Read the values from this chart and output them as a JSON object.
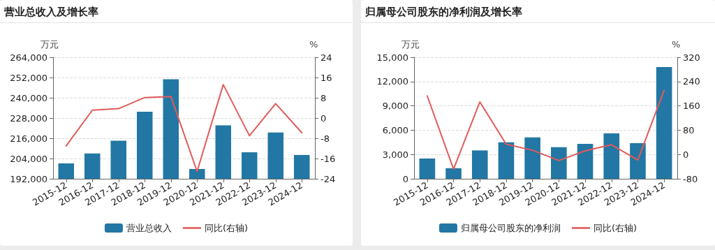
{
  "chart_data": [
    {
      "type": "bar",
      "title": "营业总收入及增长率",
      "ylabel": "万元",
      "y2label": "%",
      "categories": [
        "2015-12",
        "2016-12",
        "2017-12",
        "2018-12",
        "2019-12",
        "2020-12",
        "2021-12",
        "2022-12",
        "2023-12",
        "2024-12"
      ],
      "series": [
        {
          "name": "营业总收入",
          "color": "#2277a4",
          "values": [
            201100,
            207000,
            214600,
            231700,
            251000,
            197800,
            223700,
            207700,
            219400,
            206100
          ]
        },
        {
          "name": "同比(右轴)",
          "type": "line",
          "axis": "y2",
          "color": "#e15b5b",
          "marker": "none",
          "line_style": "solid",
          "values": [
            -11.0,
            3.1,
            3.7,
            8.1,
            8.5,
            -21.1,
            13.2,
            -7.0,
            5.7,
            -5.8
          ]
        }
      ],
      "ylim": [
        192000,
        264000
      ],
      "yticks": [
        {
          "value": 192000,
          "label": "192,000"
        },
        {
          "value": 204000,
          "label": "204,000"
        },
        {
          "value": 216000,
          "label": "216,000"
        },
        {
          "value": 228000,
          "label": "228,000"
        },
        {
          "value": 240000,
          "label": "240,000"
        },
        {
          "value": 252000,
          "label": "252,000"
        },
        {
          "value": 264000,
          "label": "264,000"
        }
      ],
      "y2lim": [
        -24,
        24
      ],
      "y2ticks": [
        -24,
        -16,
        -8,
        0,
        8,
        16,
        24
      ],
      "grid": "y",
      "legend": "bottom"
    },
    {
      "type": "bar",
      "title": "归属母公司股东的净利润及增长率",
      "ylabel": "万元",
      "y2label": "%",
      "categories": [
        "2015-12",
        "2016-12",
        "2017-12",
        "2018-12",
        "2019-12",
        "2020-12",
        "2021-12",
        "2022-12",
        "2023-12",
        "2024-12"
      ],
      "series": [
        {
          "name": "归属母公司股东的净利润",
          "color": "#2277a4",
          "values": [
            2500,
            1300,
            3500,
            4500,
            5100,
            3900,
            4300,
            5600,
            4400,
            13800
          ]
        },
        {
          "name": "同比(右轴)",
          "type": "line",
          "axis": "y2",
          "color": "#e15b5b",
          "marker": "none",
          "line_style": "solid",
          "values": [
            193,
            -48,
            173,
            34,
            14,
            -20,
            12,
            32,
            -18,
            211
          ]
        }
      ],
      "ylim": [
        0,
        15000
      ],
      "yticks": [
        0,
        {
          "value": 3000,
          "label": "3,000"
        },
        {
          "value": 6000,
          "label": "6,000"
        },
        {
          "value": 9000,
          "label": "9,000"
        },
        {
          "value": 12000,
          "label": "12,000"
        },
        {
          "value": 15000,
          "label": "15,000"
        }
      ],
      "y2lim": [
        -80,
        320
      ],
      "y2ticks": [
        -80,
        0,
        80,
        160,
        240,
        320
      ],
      "grid": "y",
      "legend": "bottom"
    }
  ]
}
